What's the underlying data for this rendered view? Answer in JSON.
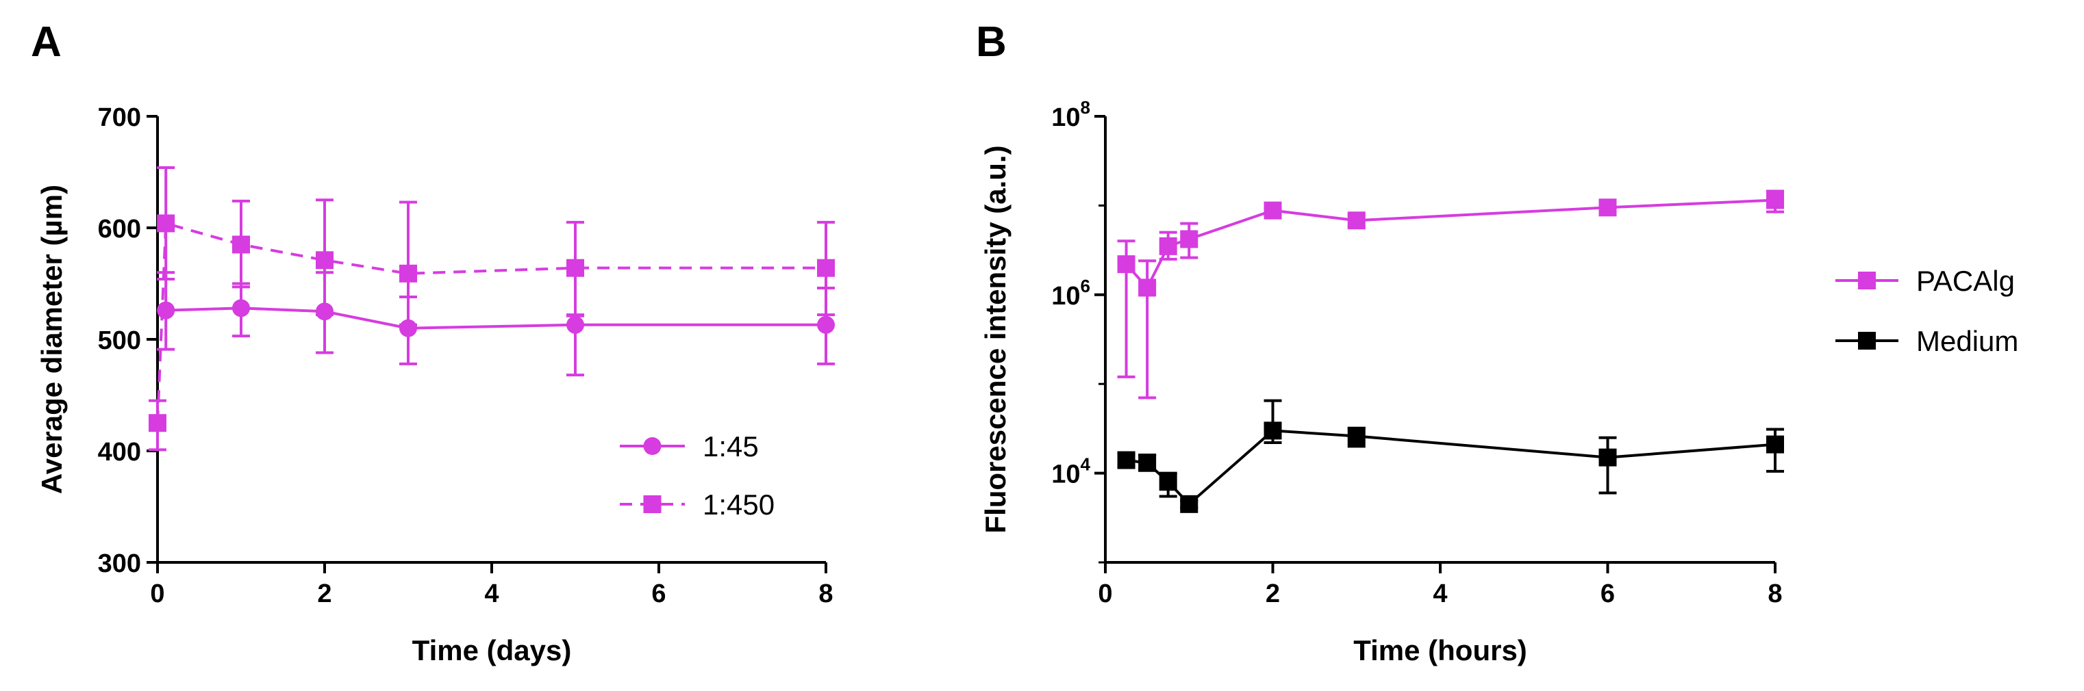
{
  "chart_data": [
    {
      "panel": "A",
      "type": "line",
      "xlabel": "Time (days)",
      "ylabel": "Average diameter  (µm)",
      "xlim": [
        0,
        8
      ],
      "ylim": [
        300,
        700
      ],
      "xticks": [
        0,
        2,
        4,
        6,
        8
      ],
      "yticks": [
        300,
        400,
        500,
        600,
        700
      ],
      "legend_position": "bottom-right",
      "series": [
        {
          "name": "1:45",
          "color": "#d63ce0",
          "marker": "circle",
          "linestyle": "solid",
          "x": [
            0.1,
            1,
            2,
            3,
            5,
            8
          ],
          "y": [
            526,
            528,
            525,
            510,
            513,
            513
          ],
          "err_low": [
            35,
            25,
            37,
            32,
            45,
            35
          ],
          "err_high": [
            34,
            22,
            35,
            28,
            8,
            33
          ]
        },
        {
          "name": "1:450",
          "color": "#d63ce0",
          "marker": "square",
          "linestyle": "dashed",
          "x": [
            0,
            0.1,
            1,
            2,
            3,
            5,
            8
          ],
          "y": [
            425,
            604,
            585,
            571,
            559,
            564,
            564
          ],
          "err_low": [
            24,
            50,
            38,
            49,
            46,
            42,
            42
          ],
          "err_high": [
            20,
            50,
            39,
            54,
            64,
            41,
            41
          ]
        }
      ]
    },
    {
      "panel": "B",
      "type": "line",
      "xlabel": "Time (hours)",
      "ylabel": "Fluorescence intensity (a.u.)",
      "yscale": "log",
      "xlim": [
        0,
        8
      ],
      "ylim": [
        1000,
        100000000
      ],
      "xticks": [
        0,
        2,
        4,
        6,
        8
      ],
      "yticks": [
        10000,
        1000000,
        100000000
      ],
      "ytick_labels": [
        {
          "base": "10",
          "exp": "4"
        },
        {
          "base": "10",
          "exp": "6"
        },
        {
          "base": "10",
          "exp": "8"
        }
      ],
      "legend_position": "outside right",
      "series": [
        {
          "name": "PACAlg",
          "color": "#d63ce0",
          "marker": "square",
          "linestyle": "solid",
          "x": [
            0.25,
            0.5,
            0.75,
            1,
            2,
            3,
            6,
            8
          ],
          "y": [
            2200000,
            1200000,
            3500000,
            4200000,
            8800000,
            6800000,
            9500000,
            11500000
          ],
          "err_low": [
            2080000,
            1130000,
            1000000,
            1600000,
            1000000,
            1000000,
            1000000,
            3000000
          ],
          "err_high": [
            1800000,
            1200000,
            1500000,
            2100000,
            1500000,
            1000000,
            1000000,
            3000000
          ]
        },
        {
          "name": "Medium",
          "color": "#000000",
          "marker": "square",
          "linestyle": "solid",
          "x": [
            0.25,
            0.5,
            0.75,
            1,
            2,
            3,
            6,
            8
          ],
          "y": [
            14000,
            13000,
            8000,
            4500,
            30000,
            26000,
            15000,
            21000
          ],
          "err_low": [
            2000,
            2000,
            2500,
            400,
            8000,
            6000,
            9000,
            10500
          ],
          "err_high": [
            2500,
            3000,
            2000,
            400,
            35000,
            6000,
            10000,
            10000
          ]
        }
      ]
    }
  ],
  "panels": {
    "a": {
      "letter": "A"
    },
    "b": {
      "letter": "B"
    }
  }
}
